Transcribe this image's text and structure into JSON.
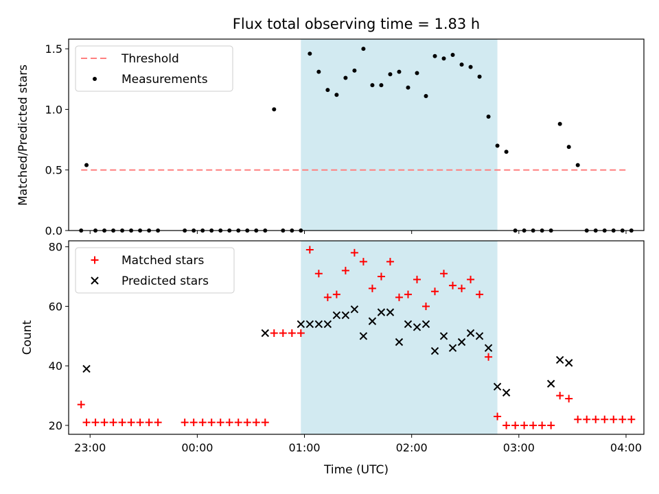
{
  "title": "Flux total observing time = 1.83 h",
  "colors": {
    "threshold": "#ff7f7f",
    "measurements": "#000000",
    "matched": "#ff0000",
    "predicted": "#000000",
    "observing_window": "#add8e6"
  },
  "chart_data": [
    {
      "type": "scatter",
      "xlabel": "",
      "ylabel": "Matched/Predicted stars",
      "xlim": [
        "22:48",
        "04:10"
      ],
      "ylim": [
        0,
        1.58
      ],
      "yticks": [
        "0.0",
        "0.5",
        "1.0",
        "1.5"
      ],
      "grid": false,
      "legend_position": "upper-left",
      "observing_window": [
        "00:58",
        "02:48"
      ],
      "series": [
        {
          "name": "Threshold",
          "kind": "dashed-line",
          "x": [
            "22:55",
            "04:00"
          ],
          "y": [
            0.5,
            0.5
          ]
        },
        {
          "name": "Measurements",
          "kind": "point",
          "x": [
            "22:55",
            "22:58",
            "23:03",
            "23:08",
            "23:13",
            "23:18",
            "23:23",
            "23:28",
            "23:33",
            "23:38",
            "23:53",
            "23:58",
            "00:03",
            "00:08",
            "00:13",
            "00:18",
            "00:23",
            "00:28",
            "00:33",
            "00:38",
            "00:43",
            "00:48",
            "00:53",
            "00:58",
            "01:03",
            "01:08",
            "01:13",
            "01:18",
            "01:23",
            "01:28",
            "01:33",
            "01:38",
            "01:43",
            "01:48",
            "01:53",
            "01:58",
            "02:03",
            "02:08",
            "02:13",
            "02:18",
            "02:23",
            "02:28",
            "02:33",
            "02:38",
            "02:43",
            "02:48",
            "02:53",
            "02:58",
            "03:03",
            "03:08",
            "03:13",
            "03:18",
            "03:23",
            "03:28",
            "03:33",
            "03:38",
            "03:43",
            "03:48",
            "03:53",
            "03:58",
            "04:03"
          ],
          "y": [
            0.0,
            0.54,
            0.0,
            0.0,
            0.0,
            0.0,
            0.0,
            0.0,
            0.0,
            0.0,
            0.0,
            0.0,
            0.0,
            0.0,
            0.0,
            0.0,
            0.0,
            0.0,
            0.0,
            0.0,
            1.0,
            0.0,
            0.0,
            0.0,
            1.46,
            1.31,
            1.16,
            1.12,
            1.26,
            1.32,
            1.5,
            1.2,
            1.2,
            1.29,
            1.31,
            1.18,
            1.3,
            1.11,
            1.44,
            1.42,
            1.45,
            1.37,
            1.35,
            1.27,
            0.94,
            0.7,
            0.65,
            0.0,
            0.0,
            0.0,
            0.0,
            0.0,
            0.88,
            0.69,
            0.54,
            0.0,
            0.0,
            0.0,
            0.0,
            0.0,
            0.0
          ]
        }
      ]
    },
    {
      "type": "scatter",
      "xlabel": "Time (UTC)",
      "ylabel": "Count",
      "xlim": [
        "22:48",
        "04:10"
      ],
      "ylim": [
        17,
        82
      ],
      "yticks": [
        "20",
        "40",
        "60",
        "80"
      ],
      "xticks": [
        "23:00",
        "00:00",
        "01:00",
        "02:00",
        "03:00",
        "04:00"
      ],
      "grid": false,
      "legend_position": "upper-left",
      "observing_window": [
        "00:58",
        "02:48"
      ],
      "series": [
        {
          "name": "Matched stars",
          "kind": "plus",
          "x": [
            "22:55",
            "22:58",
            "23:03",
            "23:08",
            "23:13",
            "23:18",
            "23:23",
            "23:28",
            "23:33",
            "23:38",
            "23:53",
            "23:58",
            "00:03",
            "00:08",
            "00:13",
            "00:18",
            "00:23",
            "00:28",
            "00:33",
            "00:38",
            "00:43",
            "00:48",
            "00:53",
            "00:58",
            "01:03",
            "01:08",
            "01:13",
            "01:18",
            "01:23",
            "01:28",
            "01:33",
            "01:38",
            "01:43",
            "01:48",
            "01:53",
            "01:58",
            "02:03",
            "02:08",
            "02:13",
            "02:18",
            "02:23",
            "02:28",
            "02:33",
            "02:38",
            "02:43",
            "02:48",
            "02:53",
            "02:58",
            "03:03",
            "03:08",
            "03:13",
            "03:18",
            "03:23",
            "03:28",
            "03:33",
            "03:38",
            "03:43",
            "03:48",
            "03:53",
            "03:58",
            "04:03"
          ],
          "y": [
            27,
            21,
            21,
            21,
            21,
            21,
            21,
            21,
            21,
            21,
            21,
            21,
            21,
            21,
            21,
            21,
            21,
            21,
            21,
            21,
            51,
            51,
            51,
            51,
            79,
            71,
            63,
            64,
            72,
            78,
            75,
            66,
            70,
            75,
            63,
            64,
            69,
            60,
            65,
            71,
            67,
            66,
            69,
            64,
            43,
            23,
            20,
            20,
            20,
            20,
            20,
            20,
            30,
            29,
            22,
            22,
            22,
            22,
            22,
            22,
            22
          ]
        },
        {
          "name": "Predicted stars",
          "kind": "cross",
          "x": [
            "22:58",
            "00:38",
            "00:58",
            "01:03",
            "01:08",
            "01:13",
            "01:18",
            "01:23",
            "01:28",
            "01:33",
            "01:38",
            "01:43",
            "01:48",
            "01:53",
            "01:58",
            "02:03",
            "02:08",
            "02:13",
            "02:18",
            "02:23",
            "02:28",
            "02:33",
            "02:38",
            "02:43",
            "02:48",
            "02:53",
            "03:18",
            "03:23",
            "03:28"
          ],
          "y": [
            39,
            51,
            54,
            54,
            54,
            54,
            57,
            57,
            59,
            50,
            55,
            58,
            58,
            48,
            54,
            53,
            54,
            45,
            50,
            46,
            48,
            51,
            50,
            46,
            33,
            31,
            34,
            42,
            41
          ]
        }
      ]
    }
  ]
}
